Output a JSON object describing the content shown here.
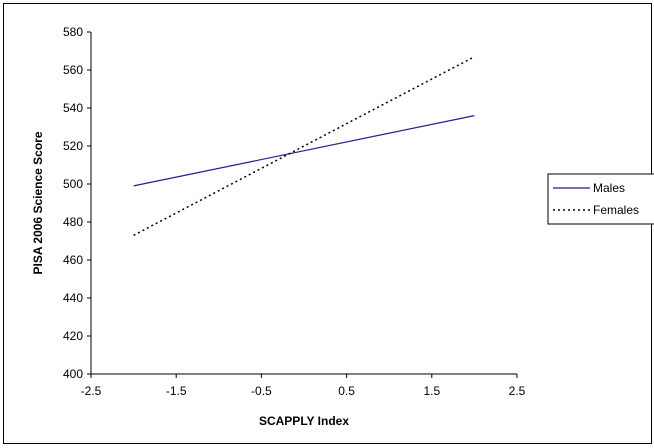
{
  "chart_data": {
    "type": "line",
    "title": "",
    "xlabel": "SCAPPLY Index",
    "ylabel": "PISA 2006 Science Score",
    "xlim": [
      -2.5,
      2.5
    ],
    "ylim": [
      400,
      580
    ],
    "xticks": [
      "-2.5",
      "-1.5",
      "-0.5",
      "0.5",
      "1.5",
      "2.5"
    ],
    "yticks": [
      "400",
      "420",
      "440",
      "460",
      "480",
      "500",
      "520",
      "540",
      "560",
      "580"
    ],
    "grid": false,
    "legend_position": "right",
    "series": [
      {
        "name": "Males",
        "color": "#1f1f8f",
        "style": "solid",
        "x": [
          -2,
          2
        ],
        "y": [
          499,
          536
        ]
      },
      {
        "name": "Females",
        "color": "#000000",
        "style": "dotted",
        "x": [
          -2,
          2
        ],
        "y": [
          473,
          567
        ]
      }
    ]
  }
}
